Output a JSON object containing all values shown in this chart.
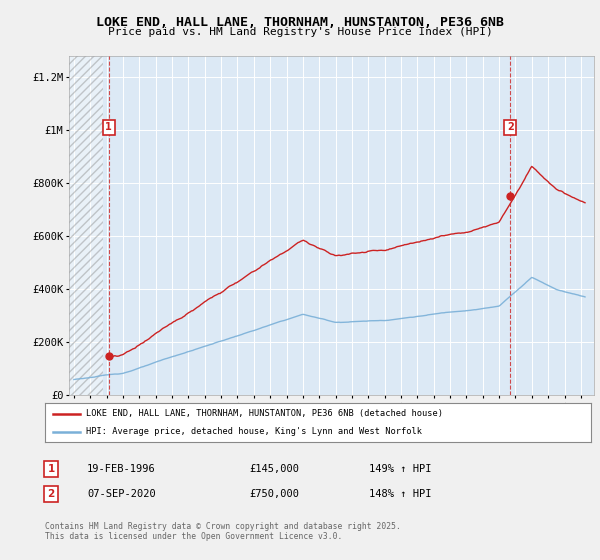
{
  "title": "LOKE END, HALL LANE, THORNHAM, HUNSTANTON, PE36 6NB",
  "subtitle": "Price paid vs. HM Land Registry's House Price Index (HPI)",
  "ylabel_ticks": [
    "£0",
    "£200K",
    "£400K",
    "£600K",
    "£800K",
    "£1M",
    "£1.2M"
  ],
  "ytick_values": [
    0,
    200000,
    400000,
    600000,
    800000,
    1000000,
    1200000
  ],
  "ylim": [
    0,
    1280000
  ],
  "xlim_start": 1993.7,
  "xlim_end": 2025.8,
  "background_color": "#f0f0f0",
  "plot_bg_color": "#dce9f5",
  "hpi_color": "#7ab0d8",
  "price_color": "#cc2222",
  "marker1_x": 1996.13,
  "marker1_y_red": 145000,
  "marker2_x": 2020.68,
  "marker2_y_red": 750000,
  "annotation1": {
    "date": "19-FEB-1996",
    "price": "£145,000",
    "pct": "149% ↑ HPI"
  },
  "annotation2": {
    "date": "07-SEP-2020",
    "price": "£750,000",
    "pct": "148% ↑ HPI"
  },
  "legend_line1": "LOKE END, HALL LANE, THORNHAM, HUNSTANTON, PE36 6NB (detached house)",
  "legend_line2": "HPI: Average price, detached house, King's Lynn and West Norfolk",
  "footer": "Contains HM Land Registry data © Crown copyright and database right 2025.\nThis data is licensed under the Open Government Licence v3.0."
}
